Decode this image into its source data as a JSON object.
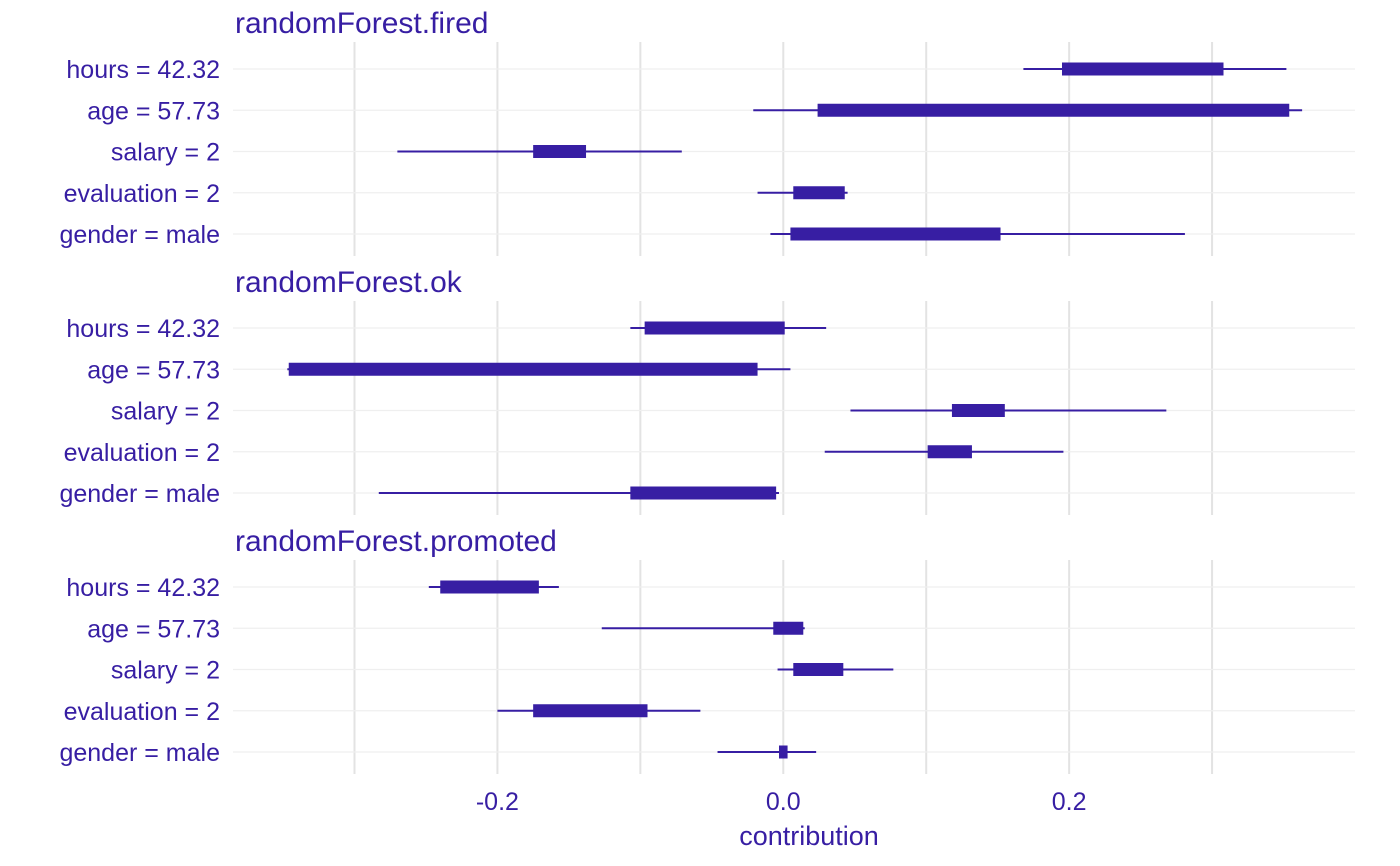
{
  "chart_data": {
    "type": "boxplot",
    "xlabel": "contribution",
    "xlim": [
      -0.385,
      0.4
    ],
    "xticks": [
      -0.2,
      0.0,
      0.2
    ],
    "xtick_labels": [
      "-0.2",
      "0.0",
      "0.2"
    ],
    "grid": true,
    "grid_x": [
      -0.3,
      -0.2,
      -0.1,
      0.0,
      0.1,
      0.2,
      0.3
    ],
    "color": "#371ea3",
    "variables": [
      "hours = 42.32",
      "age = 57.73",
      "salary = 2",
      "evaluation = 2",
      "gender = male"
    ],
    "panels": [
      {
        "title": "randomForest.fired",
        "boxes": [
          {
            "label": "hours = 42.32",
            "min": 0.168,
            "q1": 0.195,
            "q3": 0.308,
            "max": 0.352
          },
          {
            "label": "age = 57.73",
            "min": -0.021,
            "q1": 0.024,
            "q3": 0.354,
            "max": 0.363
          },
          {
            "label": "salary = 2",
            "min": -0.27,
            "q1": -0.175,
            "q3": -0.138,
            "max": -0.071
          },
          {
            "label": "evaluation = 2",
            "min": -0.018,
            "q1": 0.007,
            "q3": 0.043,
            "max": 0.045
          },
          {
            "label": "gender = male",
            "min": -0.009,
            "q1": 0.005,
            "q3": 0.152,
            "max": 0.281
          }
        ]
      },
      {
        "title": "randomForest.ok",
        "boxes": [
          {
            "label": "hours = 42.32",
            "min": -0.107,
            "q1": -0.097,
            "q3": 0.001,
            "max": 0.03
          },
          {
            "label": "age = 57.73",
            "min": -0.347,
            "q1": -0.346,
            "q3": -0.018,
            "max": 0.005
          },
          {
            "label": "salary = 2",
            "min": 0.047,
            "q1": 0.118,
            "q3": 0.155,
            "max": 0.268
          },
          {
            "label": "evaluation = 2",
            "min": 0.029,
            "q1": 0.101,
            "q3": 0.132,
            "max": 0.196
          },
          {
            "label": "gender = male",
            "min": -0.283,
            "q1": -0.107,
            "q3": -0.005,
            "max": -0.003
          }
        ]
      },
      {
        "title": "randomForest.promoted",
        "boxes": [
          {
            "label": "hours = 42.32",
            "min": -0.248,
            "q1": -0.24,
            "q3": -0.171,
            "max": -0.157
          },
          {
            "label": "age = 57.73",
            "min": -0.127,
            "q1": -0.007,
            "q3": 0.014,
            "max": 0.015
          },
          {
            "label": "salary = 2",
            "min": -0.004,
            "q1": 0.007,
            "q3": 0.042,
            "max": 0.077
          },
          {
            "label": "evaluation = 2",
            "min": -0.2,
            "q1": -0.175,
            "q3": -0.095,
            "max": -0.058
          },
          {
            "label": "gender = male",
            "min": -0.046,
            "q1": -0.003,
            "q3": 0.003,
            "max": 0.023
          }
        ]
      }
    ]
  }
}
